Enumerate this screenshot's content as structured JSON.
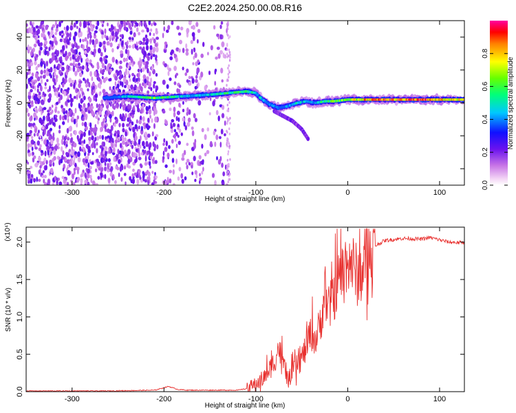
{
  "figure": {
    "title": "C2E2.2024.250.00.08.R16"
  },
  "chart_data": [
    {
      "type": "heatmap",
      "title": "C2E2.2024.250.00.08.R16",
      "xlabel": "Height of straight line (km)",
      "ylabel": "Frequency (Hz)",
      "xlim": [
        -350,
        127
      ],
      "ylim": [
        -50,
        50
      ],
      "x_ticks": [
        -300,
        -200,
        -100,
        0,
        100
      ],
      "y_ticks": [
        40,
        20,
        0,
        -20,
        -40
      ],
      "grid": false,
      "colorbar": {
        "label": "Normalized spectral amplitude",
        "range": [
          0.0,
          1.0
        ],
        "ticks": [
          0.0,
          0.2,
          0.4,
          0.6,
          0.8
        ],
        "colormap": "rainbow (magenta-blue-cyan-green-yellow-red)"
      },
      "ridge": {
        "description": "dominant frequency ridge",
        "x": [
          -265,
          -240,
          -210,
          -180,
          -150,
          -130,
          -110,
          -100,
          -95,
          -85,
          -75,
          -65,
          -55,
          -45,
          -35,
          -25,
          -15,
          0,
          20,
          50,
          80,
          100,
          127
        ],
        "y": [
          3,
          4,
          3,
          4,
          5,
          6,
          7,
          6,
          3,
          -1,
          -3,
          -2,
          0,
          1,
          0,
          1,
          1,
          2,
          2,
          2,
          2,
          2,
          2
        ],
        "amplitude": [
          0.3,
          0.5,
          0.7,
          0.5,
          0.5,
          0.6,
          0.6,
          0.55,
          0.5,
          0.45,
          0.4,
          0.45,
          0.55,
          0.5,
          0.5,
          0.6,
          0.7,
          0.7,
          0.9,
          0.95,
          0.95,
          0.85,
          0.8
        ]
      },
      "branch": {
        "x": [
          -80,
          -70,
          -60,
          -50,
          -43
        ],
        "y": [
          -5,
          -8,
          -11,
          -16,
          -22
        ]
      },
      "noise_region_x": [
        -350,
        -130
      ]
    },
    {
      "type": "line",
      "xlabel": "Height of straight line (km)",
      "ylabel": "SNR (10 * v/v)",
      "y_multiplier": "(x10⁴)",
      "xlim": [
        -350,
        127
      ],
      "ylim": [
        0,
        2.2
      ],
      "x_ticks": [
        -300,
        -200,
        -100,
        0,
        100
      ],
      "y_ticks": [
        0.0,
        0.5,
        1.0,
        1.5,
        2.0
      ],
      "y_tick_labels": [
        "0.0",
        "0.5",
        "1.0",
        "1.5",
        "2.0"
      ],
      "grid": false,
      "series": [
        {
          "color": "#e8302e",
          "x": [
            -350,
            -260,
            -210,
            -195,
            -185,
            -175,
            -150,
            -120,
            -110,
            -100,
            -90,
            -80,
            -75,
            -70,
            -65,
            -60,
            -55,
            -50,
            -45,
            -40,
            -35,
            -30,
            -25,
            -20,
            -15,
            -10,
            -5,
            0,
            5,
            10,
            15,
            20,
            30,
            40,
            60,
            80,
            90,
            100,
            110,
            127
          ],
          "y": [
            0.01,
            0.01,
            0.02,
            0.07,
            0.03,
            0.02,
            0.02,
            0.02,
            0.04,
            0.1,
            0.2,
            0.4,
            0.6,
            0.35,
            0.15,
            0.25,
            0.35,
            0.45,
            0.6,
            0.8,
            0.7,
            0.9,
            1.3,
            1.1,
            1.3,
            1.5,
            1.6,
            1.8,
            1.7,
            1.55,
            1.6,
            1.75,
            1.95,
            2.02,
            2.05,
            2.04,
            2.06,
            2.03,
            2.0,
            1.99
          ]
        }
      ]
    }
  ]
}
